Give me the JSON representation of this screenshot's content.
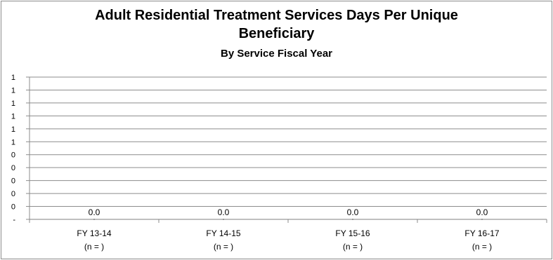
{
  "chart_data": {
    "type": "line",
    "title_line1": "Adult Residential Treatment Services Days Per Unique",
    "title_line2": "Beneficiary",
    "subtitle": "By Service Fiscal Year",
    "categories": [
      "FY 13-14",
      "FY 14-15",
      "FY 15-16",
      "FY 16-17"
    ],
    "category_sublabels": [
      "(n = )",
      "(n = )",
      "(n = )",
      "(n = )"
    ],
    "series": [
      {
        "values": [
          0,
          0,
          0,
          0
        ]
      }
    ],
    "data_labels": [
      "0.0",
      "0.0",
      "0.0",
      "0.0"
    ],
    "y_tick_labels": [
      "-",
      "0",
      "0",
      "0",
      "0",
      "0",
      "1",
      "1",
      "1",
      "1",
      "1",
      "1"
    ],
    "ylim": [
      0,
      1
    ],
    "grid": true,
    "legend": "none",
    "colors": {
      "gridline": "#8c8c8c",
      "series": "#7f7f7f"
    }
  }
}
